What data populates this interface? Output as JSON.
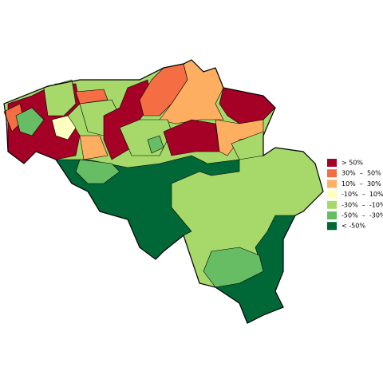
{
  "legend": {
    "items": [
      {
        "label": "> 50%",
        "color": "#a50026"
      },
      {
        "label": "30%  –  50%",
        "color": "#f46d43"
      },
      {
        "label": "10%  –  30%",
        "color": "#fdae61"
      },
      {
        "label": "-10%  –  10%",
        "color": "#ffffbf"
      },
      {
        "label": "-30%  –  -10%",
        "color": "#a6d96a"
      },
      {
        "label": "-50%  –  -30%",
        "color": "#66bd63"
      },
      {
        "label": "< -50%",
        "color": "#006837"
      }
    ]
  }
}
